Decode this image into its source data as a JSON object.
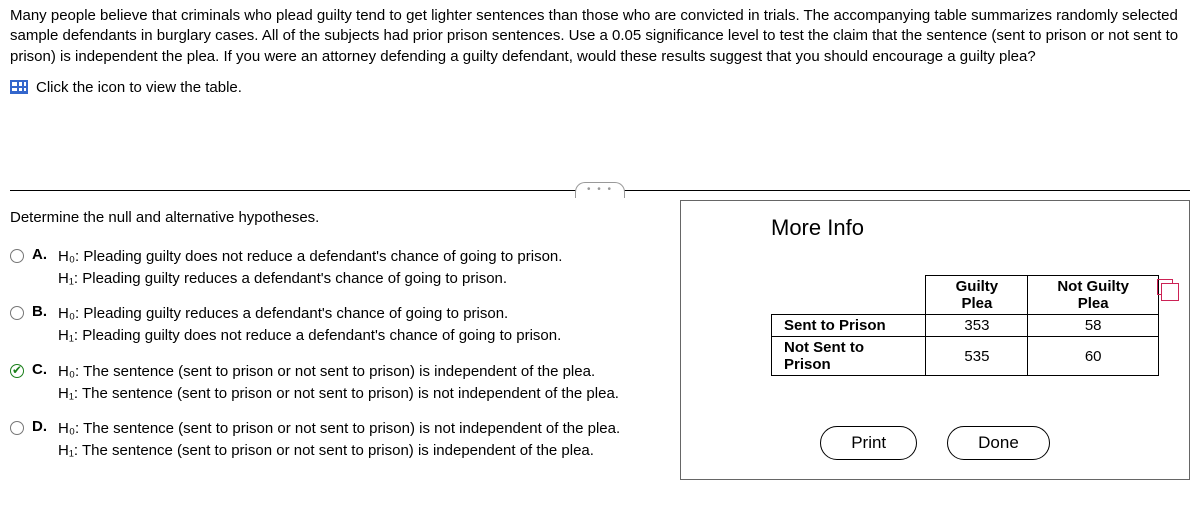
{
  "problem": {
    "text": "Many people believe that criminals who plead guilty tend to get lighter sentences than those who are convicted in trials. The accompanying table summarizes randomly selected sample defendants in burglary cases. All of the subjects had prior prison sentences. Use a 0.05 significance level to test the claim that the sentence (sent to prison or not sent to prison) is independent the plea. If you were an attorney defending a guilty defendant, would these results suggest that you should encourage a guilty plea?",
    "link_text": "Click the icon to view the table."
  },
  "question": {
    "prompt": "Determine the null and alternative hypotheses.",
    "choices": {
      "A": {
        "h0": "H₀: Pleading guilty does not reduce a defendant's chance of going to prison.",
        "h1": "H₁: Pleading guilty reduces a defendant's chance of going to prison."
      },
      "B": {
        "h0": "H₀: Pleading guilty reduces a defendant's chance of going to prison.",
        "h1": "H₁: Pleading guilty does not reduce a defendant's chance of going to prison."
      },
      "C": {
        "h0": "H₀: The sentence (sent to prison or not sent to prison) is independent of the plea.",
        "h1": "H₁: The sentence (sent to prison or not sent to prison) is not independent of the plea."
      },
      "D": {
        "h0": "H₀: The sentence (sent to prison or not sent to prison) is not independent of the plea.",
        "h1": "H₁: The sentence (sent to prison or not sent to prison) is independent of the plea."
      }
    },
    "selected": "C"
  },
  "modal": {
    "title": "More Info",
    "table": {
      "col_headers": [
        "Guilty Plea",
        "Not Guilty Plea"
      ],
      "rows": [
        {
          "label": "Sent to Prison",
          "values": [
            353,
            58
          ]
        },
        {
          "label": "Not Sent to Prison",
          "values": [
            535,
            60
          ]
        }
      ]
    },
    "buttons": {
      "print": "Print",
      "done": "Done"
    }
  },
  "labels": {
    "A": "A.",
    "B": "B.",
    "C": "C.",
    "D": "D."
  },
  "dots": "• • •"
}
